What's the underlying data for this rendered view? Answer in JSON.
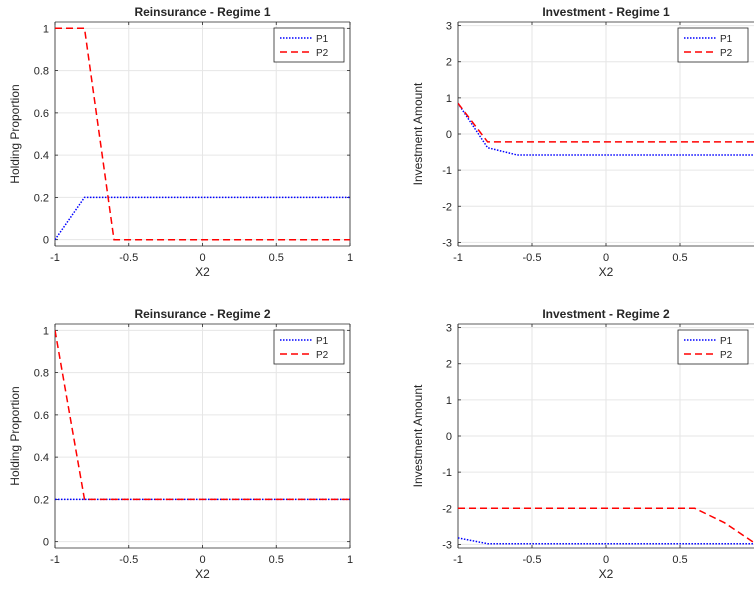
{
  "chart_data": [
    {
      "type": "line",
      "title": "Reinsurance - Regime 1",
      "xlabel": "X2",
      "ylabel": "Holding Proportion",
      "xlim": [
        -1,
        1
      ],
      "ylim": [
        -0.03,
        1.03
      ],
      "xticks": [
        -1,
        -0.5,
        0,
        0.5,
        1
      ],
      "xtick_labels": [
        "-1",
        "-0.5",
        "0",
        "0.5",
        "1"
      ],
      "yticks": [
        0,
        0.2,
        0.4,
        0.6,
        0.8,
        1
      ],
      "ytick_labels": [
        "0",
        "0.2",
        "0.4",
        "0.6",
        "0.8",
        "1"
      ],
      "grid": true,
      "legend_position": "top-right",
      "series": [
        {
          "name": "P1",
          "color": "#0000ff",
          "style": "dotted",
          "x": [
            -1,
            -0.8,
            1
          ],
          "y": [
            0,
            0.2,
            0.2
          ]
        },
        {
          "name": "P2",
          "color": "#ff0000",
          "style": "dashed",
          "x": [
            -1,
            -0.8,
            -0.6,
            1
          ],
          "y": [
            1,
            1,
            0,
            0
          ]
        }
      ]
    },
    {
      "type": "line",
      "title": "Investment - Regime 1",
      "xlabel": "X2",
      "ylabel": "Investment Amount",
      "xlim": [
        -1,
        1
      ],
      "ylim": [
        -3.1,
        3.1
      ],
      "xticks": [
        -1,
        -0.5,
        0,
        0.5
      ],
      "xtick_labels": [
        "-1",
        "-0.5",
        "0",
        "0.5"
      ],
      "yticks": [
        -3,
        -2,
        -1,
        0,
        1,
        2,
        3
      ],
      "ytick_labels": [
        "-3",
        "-2",
        "-1",
        "0",
        "1",
        "2",
        "3"
      ],
      "grid": true,
      "legend_position": "top-right",
      "series": [
        {
          "name": "P1",
          "color": "#0000ff",
          "style": "dotted",
          "x": [
            -1,
            -0.8,
            -0.6,
            1
          ],
          "y": [
            0.85,
            -0.38,
            -0.58,
            -0.58
          ]
        },
        {
          "name": "P2",
          "color": "#ff0000",
          "style": "dashed",
          "x": [
            -1,
            -0.8,
            1
          ],
          "y": [
            0.85,
            -0.22,
            -0.22
          ]
        }
      ]
    },
    {
      "type": "line",
      "title": "Reinsurance - Regime 2",
      "xlabel": "X2",
      "ylabel": "Holding Proportion",
      "xlim": [
        -1,
        1
      ],
      "ylim": [
        -0.03,
        1.03
      ],
      "xticks": [
        -1,
        -0.5,
        0,
        0.5,
        1
      ],
      "xtick_labels": [
        "-1",
        "-0.5",
        "0",
        "0.5",
        "1"
      ],
      "yticks": [
        0,
        0.2,
        0.4,
        0.6,
        0.8,
        1
      ],
      "ytick_labels": [
        "0",
        "0.2",
        "0.4",
        "0.6",
        "0.8",
        "1"
      ],
      "grid": true,
      "legend_position": "top-right",
      "series": [
        {
          "name": "P1",
          "color": "#0000ff",
          "style": "dotted",
          "x": [
            -1,
            1
          ],
          "y": [
            0.2,
            0.2
          ]
        },
        {
          "name": "P2",
          "color": "#ff0000",
          "style": "dashed",
          "x": [
            -1,
            -0.8,
            1
          ],
          "y": [
            1,
            0.2,
            0.2
          ]
        }
      ]
    },
    {
      "type": "line",
      "title": "Investment - Regime 2",
      "xlabel": "X2",
      "ylabel": "Investment Amount",
      "xlim": [
        -1,
        1
      ],
      "ylim": [
        -3.1,
        3.1
      ],
      "xticks": [
        -1,
        -0.5,
        0,
        0.5
      ],
      "xtick_labels": [
        "-1",
        "-0.5",
        "0",
        "0.5"
      ],
      "yticks": [
        -3,
        -2,
        -1,
        0,
        1,
        2,
        3
      ],
      "ytick_labels": [
        "-3",
        "-2",
        "-1",
        "0",
        "1",
        "2",
        "3"
      ],
      "grid": true,
      "legend_position": "top-right",
      "series": [
        {
          "name": "P1",
          "color": "#0000ff",
          "style": "dotted",
          "x": [
            -1,
            -0.8,
            1
          ],
          "y": [
            -2.82,
            -2.98,
            -2.98
          ]
        },
        {
          "name": "P2",
          "color": "#ff0000",
          "style": "dashed",
          "x": [
            -1,
            0.6,
            0.8,
            1
          ],
          "y": [
            -2,
            -2,
            -2.4,
            -2.95
          ]
        }
      ]
    }
  ]
}
